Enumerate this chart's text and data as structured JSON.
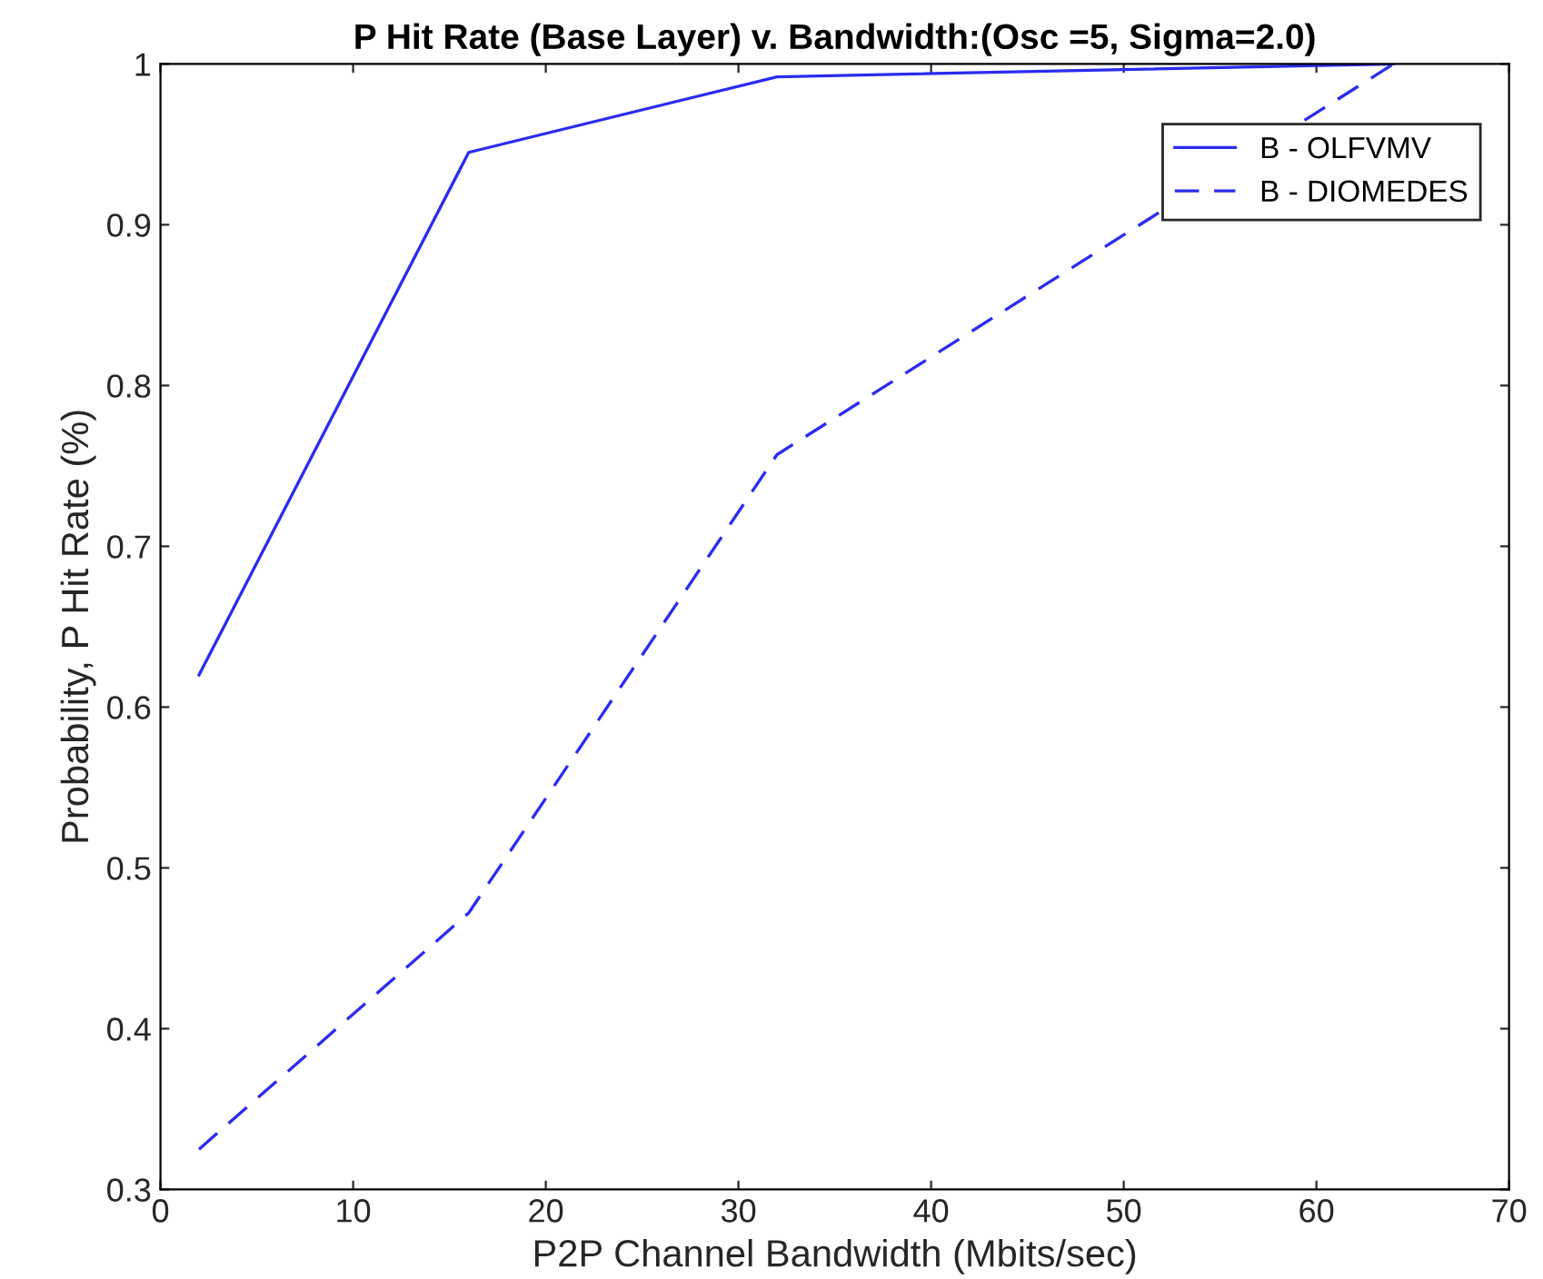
{
  "chart_data": {
    "type": "line",
    "title": "P Hit Rate (Base Layer) v. Bandwidth:(Osc =5, Sigma=2.0)",
    "xlabel": "P2P Channel Bandwidth (Mbits/sec)",
    "ylabel": "Probability, P Hit Rate (%)",
    "x": [
      2,
      16,
      32,
      64
    ],
    "series": [
      {
        "name": "B - OLFVMV",
        "color": "#2b2bf0",
        "values": [
          0.62,
          0.945,
          0.992,
          1.0
        ],
        "line_style": "solid"
      },
      {
        "name": "B - DIOMEDES",
        "color": "#2b2bf0",
        "values": [
          0.325,
          0.472,
          0.757,
          1.0
        ],
        "line_style": "dashed"
      }
    ],
    "xlim": [
      0,
      70
    ],
    "xticks": [
      0,
      10,
      20,
      30,
      40,
      50,
      60,
      70
    ],
    "ylim": [
      0.3,
      1
    ],
    "yticks": [
      0.3,
      0.4,
      0.5,
      0.6,
      0.7,
      0.8,
      0.9,
      1
    ],
    "legend": "top right",
    "grid": false,
    "marker": "none"
  }
}
